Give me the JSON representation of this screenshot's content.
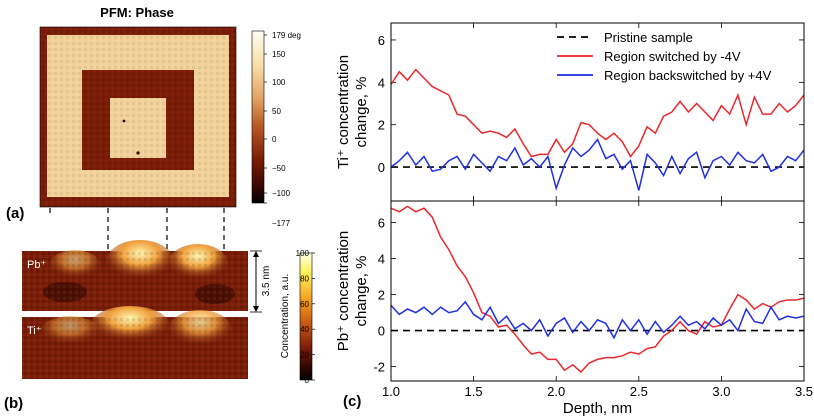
{
  "panel_labels": {
    "a": "(a)",
    "b": "(b)",
    "c": "(c)"
  },
  "pfm": {
    "title": "PFM: Phase",
    "colorbar_ticks": [
      "179 deg",
      "150",
      "100",
      "50",
      "0",
      "−50",
      "−100",
      "−177"
    ],
    "colors": {
      "light": "#f2d29a",
      "dark": "#7a1c06"
    }
  },
  "maps": {
    "pb_label": "Pb⁺",
    "ti_label": "Ti⁺",
    "scale_label": "3.5 nm",
    "colorbar_label": "Concentration, a.u.",
    "colorbar_ticks": [
      "100",
      "80",
      "60",
      "40",
      "20",
      "0"
    ]
  },
  "chart_data": [
    {
      "type": "line",
      "ylabel_line1": "Ti⁺ concentration",
      "ylabel_line2": "change, %",
      "xlim": [
        1.0,
        3.5
      ],
      "ylim": [
        -1.6,
        6.8
      ],
      "yticks": [
        0,
        2,
        4,
        6
      ],
      "legend": "top-right",
      "series": [
        {
          "name": "Pristine sample",
          "color": "#000000",
          "style": "dashed",
          "x": [
            1.0,
            3.5
          ],
          "y": [
            0,
            0
          ]
        },
        {
          "name": "Region switched by -4V",
          "color": "#e8282b",
          "style": "solid",
          "x": [
            1.0,
            1.05,
            1.1,
            1.15,
            1.2,
            1.25,
            1.3,
            1.35,
            1.4,
            1.45,
            1.5,
            1.55,
            1.6,
            1.65,
            1.7,
            1.75,
            1.8,
            1.85,
            1.9,
            1.95,
            2.0,
            2.05,
            2.1,
            2.15,
            2.2,
            2.25,
            2.3,
            2.35,
            2.4,
            2.45,
            2.5,
            2.55,
            2.6,
            2.65,
            2.7,
            2.75,
            2.8,
            2.85,
            2.9,
            2.95,
            3.0,
            3.05,
            3.1,
            3.15,
            3.2,
            3.25,
            3.3,
            3.35,
            3.4,
            3.45,
            3.5
          ],
          "y": [
            3.9,
            4.5,
            4.1,
            4.6,
            4.2,
            3.8,
            3.6,
            3.4,
            2.5,
            2.4,
            2.0,
            1.6,
            1.7,
            1.6,
            1.4,
            1.8,
            1.1,
            0.5,
            0.6,
            0.6,
            1.3,
            0.7,
            1.1,
            2.1,
            2.0,
            1.6,
            1.3,
            1.6,
            1.2,
            0.5,
            1.0,
            1.9,
            1.6,
            2.4,
            2.6,
            3.1,
            2.6,
            3.0,
            2.6,
            2.2,
            2.9,
            2.5,
            3.4,
            2.0,
            3.3,
            2.5,
            2.5,
            3.0,
            2.6,
            2.9,
            3.4
          ]
        },
        {
          "name": "Region backswitched by +4V",
          "color": "#2030e0",
          "style": "solid",
          "x": [
            1.0,
            1.05,
            1.1,
            1.15,
            1.2,
            1.25,
            1.3,
            1.35,
            1.4,
            1.45,
            1.5,
            1.55,
            1.6,
            1.65,
            1.7,
            1.75,
            1.8,
            1.85,
            1.9,
            1.95,
            2.0,
            2.05,
            2.1,
            2.15,
            2.2,
            2.25,
            2.3,
            2.35,
            2.4,
            2.45,
            2.5,
            2.55,
            2.6,
            2.65,
            2.7,
            2.75,
            2.8,
            2.85,
            2.9,
            2.95,
            3.0,
            3.05,
            3.1,
            3.15,
            3.2,
            3.25,
            3.3,
            3.35,
            3.4,
            3.45,
            3.5
          ],
          "y": [
            0.0,
            0.3,
            0.7,
            0.1,
            0.5,
            -0.2,
            -0.1,
            0.3,
            0.5,
            -0.1,
            0.6,
            0.2,
            -0.2,
            0.5,
            0.3,
            0.9,
            0.1,
            0.4,
            0.0,
            0.5,
            -1.0,
            0.1,
            0.9,
            0.5,
            0.8,
            1.3,
            0.4,
            0.6,
            -0.1,
            0.3,
            -1.1,
            0.6,
            0.2,
            -0.4,
            0.5,
            -0.3,
            0.4,
            0.7,
            -0.5,
            0.3,
            0.5,
            0.1,
            0.7,
            0.3,
            0.2,
            0.6,
            -0.2,
            0.0,
            0.5,
            0.3,
            0.8
          ]
        }
      ]
    },
    {
      "type": "line",
      "ylabel_line1": "Pb⁺ concentration",
      "ylabel_line2": "change, %",
      "xlabel": "Depth, nm",
      "xlim": [
        1.0,
        3.5
      ],
      "ylim": [
        -2.8,
        7.2
      ],
      "xticks": [
        1.0,
        1.5,
        2.0,
        2.5,
        3.0,
        3.5
      ],
      "yticks": [
        -2,
        0,
        2,
        4,
        6
      ],
      "series": [
        {
          "name": "Pristine sample",
          "color": "#000000",
          "style": "dashed",
          "x": [
            1.0,
            3.5
          ],
          "y": [
            0,
            0
          ]
        },
        {
          "name": "Region switched by -4V",
          "color": "#e8282b",
          "style": "solid",
          "x": [
            1.0,
            1.05,
            1.1,
            1.15,
            1.2,
            1.25,
            1.3,
            1.35,
            1.4,
            1.45,
            1.5,
            1.55,
            1.6,
            1.65,
            1.7,
            1.75,
            1.8,
            1.85,
            1.9,
            1.95,
            2.0,
            2.05,
            2.1,
            2.15,
            2.2,
            2.25,
            2.3,
            2.35,
            2.4,
            2.45,
            2.5,
            2.55,
            2.6,
            2.65,
            2.7,
            2.75,
            2.8,
            2.85,
            2.9,
            2.95,
            3.0,
            3.05,
            3.1,
            3.15,
            3.2,
            3.25,
            3.3,
            3.35,
            3.4,
            3.45,
            3.5
          ],
          "y": [
            6.8,
            6.6,
            6.9,
            6.6,
            6.8,
            6.3,
            5.2,
            4.5,
            3.6,
            3.0,
            2.1,
            1.0,
            0.8,
            0.2,
            0.3,
            -0.2,
            -0.8,
            -1.3,
            -1.2,
            -1.6,
            -1.6,
            -2.2,
            -1.9,
            -2.3,
            -1.8,
            -1.6,
            -1.5,
            -1.5,
            -1.4,
            -1.2,
            -1.3,
            -1.0,
            -0.9,
            -0.3,
            0.0,
            0.5,
            0.0,
            -0.2,
            0.5,
            0.2,
            0.3,
            1.2,
            2.0,
            1.7,
            1.2,
            1.5,
            1.3,
            1.6,
            1.7,
            1.7,
            1.8
          ]
        },
        {
          "name": "Region backswitched by +4V",
          "color": "#2030e0",
          "style": "solid",
          "x": [
            1.0,
            1.05,
            1.1,
            1.15,
            1.2,
            1.25,
            1.3,
            1.35,
            1.4,
            1.45,
            1.5,
            1.55,
            1.6,
            1.65,
            1.7,
            1.75,
            1.8,
            1.85,
            1.9,
            1.95,
            2.0,
            2.05,
            2.1,
            2.15,
            2.2,
            2.25,
            2.3,
            2.35,
            2.4,
            2.45,
            2.5,
            2.55,
            2.6,
            2.65,
            2.7,
            2.75,
            2.8,
            2.85,
            2.9,
            2.95,
            3.0,
            3.05,
            3.1,
            3.15,
            3.2,
            3.25,
            3.3,
            3.35,
            3.4,
            3.45,
            3.5
          ],
          "y": [
            1.4,
            0.9,
            1.2,
            1.0,
            1.3,
            0.9,
            1.3,
            1.0,
            1.1,
            1.6,
            0.9,
            0.6,
            1.3,
            0.4,
            0.8,
            0.1,
            0.4,
            0.0,
            0.6,
            -0.3,
            0.4,
            0.7,
            -0.1,
            0.5,
            0.0,
            0.6,
            0.4,
            -0.4,
            0.6,
            0.0,
            0.6,
            -0.2,
            0.5,
            -0.1,
            0.3,
            0.8,
            0.3,
            0.5,
            0.1,
            0.7,
            0.3,
            0.6,
            0.0,
            1.2,
            0.5,
            0.4,
            1.3,
            0.6,
            0.8,
            0.7,
            0.8
          ]
        }
      ]
    }
  ]
}
